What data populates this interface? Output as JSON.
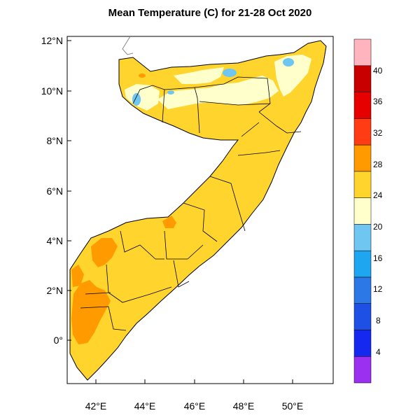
{
  "title": "Mean Temperature (C) for 21-28 Oct 2020",
  "latitude_labels": [
    "12°N",
    "10°N",
    "8°N",
    "6°N",
    "4°N",
    "2°N",
    "0°"
  ],
  "longitude_labels": [
    "42°E",
    "44°E",
    "46°E",
    "48°E",
    "50°E"
  ],
  "colorbar": {
    "levels": [
      "4",
      "8",
      "12",
      "16",
      "20",
      "24",
      "28",
      "32",
      "36",
      "40"
    ],
    "colors": [
      "#9b30f0",
      "#1428f0",
      "#1e50e6",
      "#2c78e6",
      "#1ea6f0",
      "#6fc6f0",
      "#ffffcc",
      "#ffd42c",
      "#ff9a00",
      "#ff3c14",
      "#e60000",
      "#c80000",
      "#ffb4be"
    ]
  },
  "map": {
    "region": "Somalia",
    "lon_range": [
      41,
      51.5
    ],
    "lat_range": [
      -1.6,
      12.2
    ],
    "fill_colors": {
      "cool_20_24": "#ffffcc",
      "warm_24_28": "#ffd42c",
      "hot_28_32": "#ff9a00",
      "cold_16_20": "#6fc6f0",
      "boundary": "#000000"
    }
  }
}
